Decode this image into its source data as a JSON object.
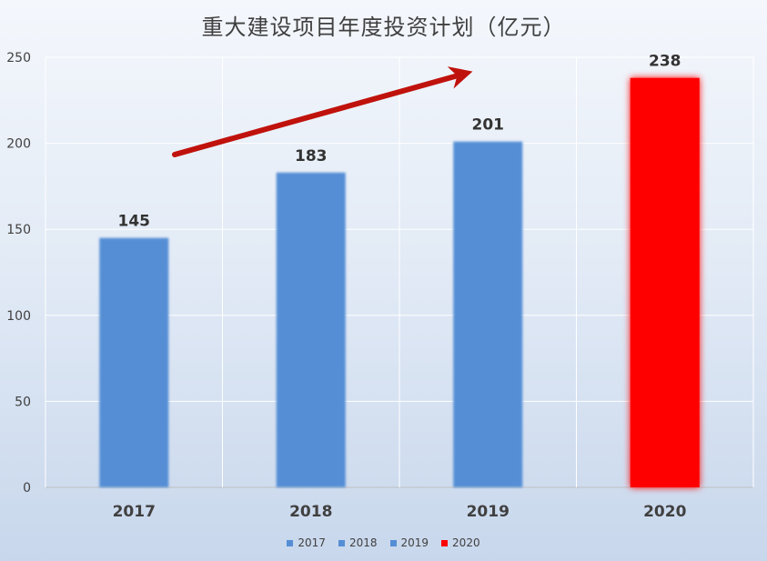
{
  "chart_data": {
    "type": "bar",
    "title": "重大建设项目年度投资计划（亿元）",
    "categories": [
      "2017",
      "2018",
      "2019",
      "2020"
    ],
    "values": [
      145,
      183,
      201,
      238
    ],
    "data_labels": [
      "145",
      "183",
      "201",
      "238"
    ],
    "bar_colors": [
      "#558ed5",
      "#558ed5",
      "#558ed5",
      "#ff0000"
    ],
    "ylim": [
      0,
      250
    ],
    "y_ticks": [
      "0",
      "50",
      "100",
      "150",
      "200",
      "250"
    ],
    "xlabel": "",
    "ylabel": "",
    "grid": true,
    "legend_position": "bottom",
    "legend": [
      {
        "name": "2017",
        "color": "#558ed5"
      },
      {
        "name": "2018",
        "color": "#558ed5"
      },
      {
        "name": "2019",
        "color": "#558ed5"
      },
      {
        "name": "2020",
        "color": "#ff0000"
      }
    ],
    "annotations": [
      {
        "type": "trend-arrow",
        "color": "#c0120c"
      }
    ]
  }
}
